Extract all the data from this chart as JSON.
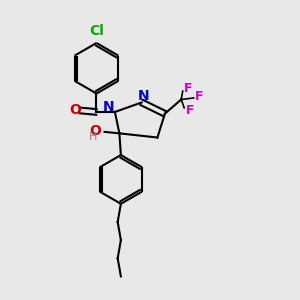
{
  "bg_color": "#e8e8e8",
  "bond_color": "#000000",
  "N_color": "#0000cc",
  "O_color": "#cc0000",
  "F_color": "#cc00cc",
  "Cl_color": "#00aa00",
  "H_color": "#888888",
  "line_width": 1.5,
  "dbo": 0.12,
  "font_size": 9,
  "figsize": [
    3.0,
    3.0
  ],
  "dpi": 100,
  "xlim": [
    0,
    10
  ],
  "ylim": [
    0,
    10
  ]
}
